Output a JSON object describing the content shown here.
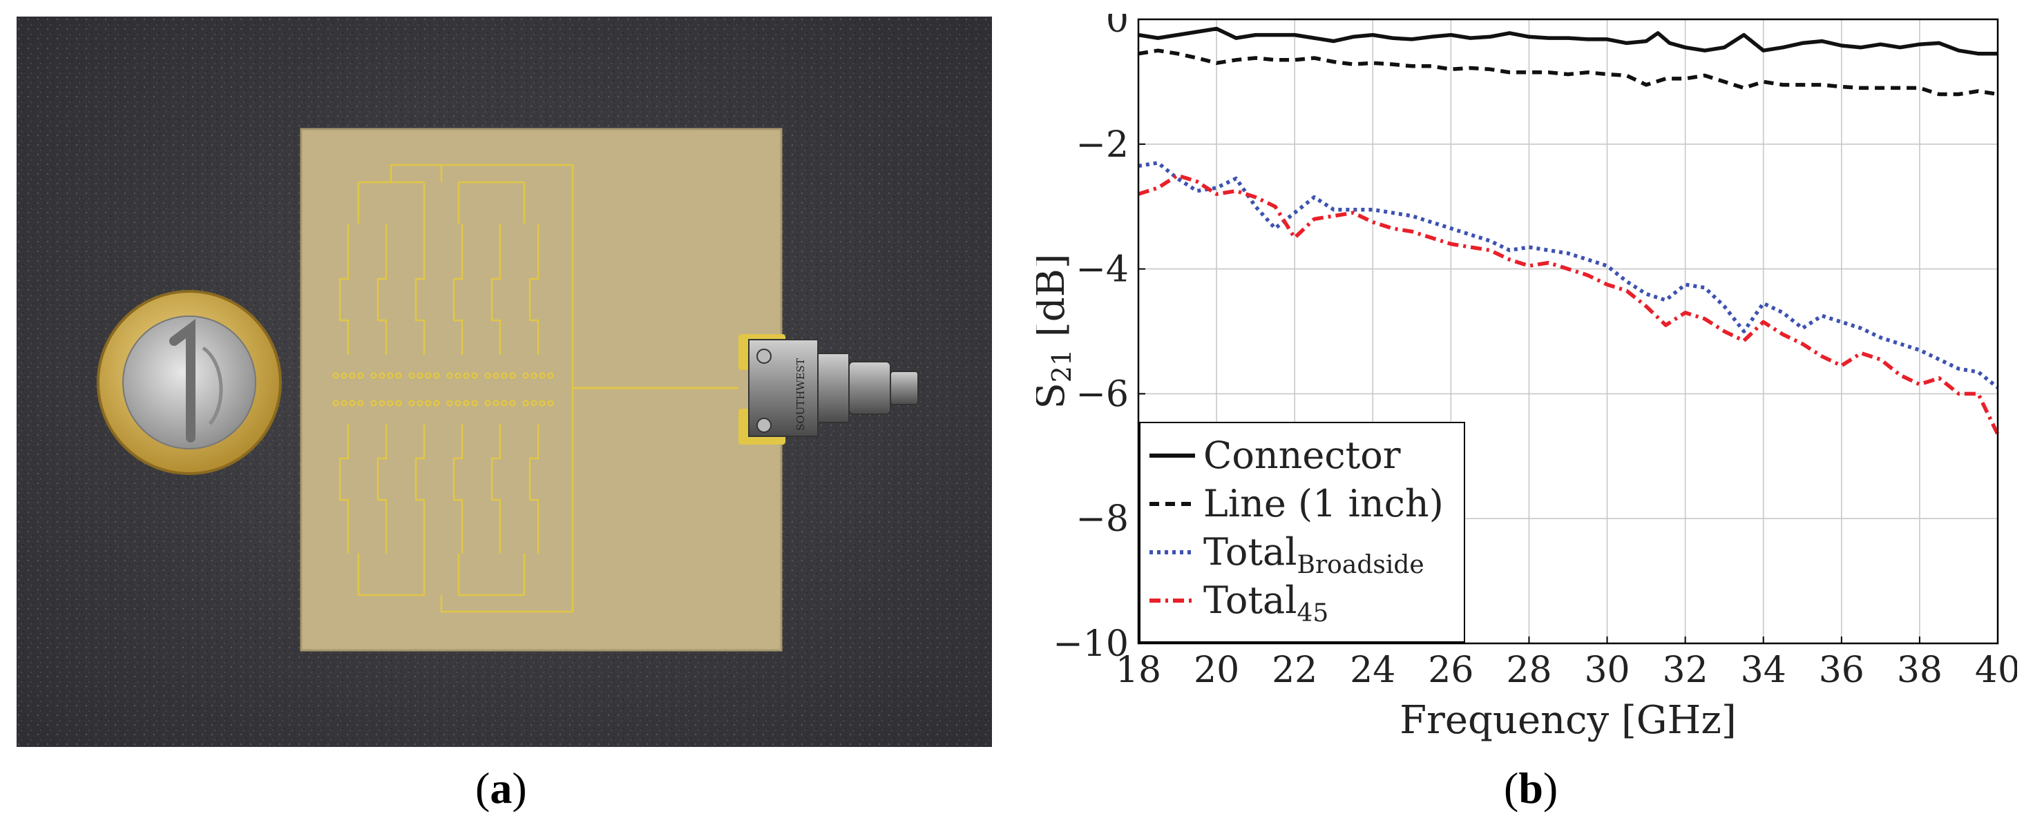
{
  "panels": {
    "a": {
      "open": "(",
      "letter": "a",
      "close": ")"
    },
    "b": {
      "open": "(",
      "letter": "b",
      "close": ")"
    }
  },
  "photo": {
    "connector_marking": "SOUTHWEST"
  },
  "chart_data": {
    "type": "line",
    "title": "",
    "xlabel": "Frequency [GHz]",
    "ylabel_main": "S",
    "ylabel_sub": "21",
    "ylabel_unit": " [dB]",
    "xlim": [
      18,
      40
    ],
    "ylim": [
      -10,
      0
    ],
    "xticks": [
      18,
      20,
      22,
      24,
      26,
      28,
      30,
      32,
      34,
      36,
      38,
      40
    ],
    "yticks": [
      0,
      -2,
      -4,
      -6,
      -8,
      -10
    ],
    "ytick_labels": [
      "0",
      "−2",
      "−4",
      "−6",
      "−8",
      "−10"
    ],
    "grid": true,
    "legend_position": "bottom-left",
    "series": [
      {
        "name": "Connector",
        "name_main": "Connector",
        "name_sub": "",
        "color": "#111111",
        "style": "solid",
        "x": [
          18,
          18.5,
          19,
          19.5,
          20,
          20.5,
          21,
          21.5,
          22,
          22.5,
          23,
          23.5,
          24,
          24.5,
          25,
          25.5,
          26,
          26.5,
          27,
          27.5,
          28,
          28.5,
          29,
          29.5,
          30,
          30.5,
          31,
          31.3,
          31.6,
          32,
          32.5,
          33,
          33.5,
          34,
          34.5,
          35,
          35.5,
          36,
          36.5,
          37,
          37.5,
          38,
          38.5,
          39,
          39.5,
          40
        ],
        "y": [
          -0.25,
          -0.3,
          -0.25,
          -0.2,
          -0.15,
          -0.3,
          -0.25,
          -0.25,
          -0.25,
          -0.3,
          -0.35,
          -0.28,
          -0.25,
          -0.3,
          -0.32,
          -0.28,
          -0.25,
          -0.3,
          -0.28,
          -0.22,
          -0.28,
          -0.3,
          -0.3,
          -0.32,
          -0.32,
          -0.38,
          -0.35,
          -0.22,
          -0.38,
          -0.45,
          -0.5,
          -0.45,
          -0.25,
          -0.5,
          -0.45,
          -0.38,
          -0.35,
          -0.42,
          -0.45,
          -0.4,
          -0.45,
          -0.4,
          -0.38,
          -0.5,
          -0.55,
          -0.55
        ]
      },
      {
        "name": "Line (1 inch)",
        "name_main": "Line (1 inch)",
        "name_sub": "",
        "color": "#111111",
        "style": "dashed",
        "x": [
          18,
          18.5,
          19,
          19.5,
          20,
          20.5,
          21,
          21.5,
          22,
          22.5,
          23,
          23.5,
          24,
          24.5,
          25,
          25.5,
          26,
          26.5,
          27,
          27.5,
          28,
          28.5,
          29,
          29.5,
          30,
          30.5,
          31,
          31.5,
          32,
          32.5,
          33,
          33.5,
          34,
          34.5,
          35,
          35.5,
          36,
          36.5,
          37,
          37.5,
          38,
          38.5,
          39,
          39.5,
          40
        ],
        "y": [
          -0.55,
          -0.5,
          -0.55,
          -0.62,
          -0.7,
          -0.65,
          -0.62,
          -0.65,
          -0.65,
          -0.62,
          -0.68,
          -0.72,
          -0.7,
          -0.72,
          -0.75,
          -0.75,
          -0.8,
          -0.78,
          -0.8,
          -0.85,
          -0.85,
          -0.85,
          -0.88,
          -0.85,
          -0.88,
          -0.9,
          -1.05,
          -0.95,
          -0.95,
          -0.9,
          -1.0,
          -1.1,
          -1.0,
          -1.05,
          -1.05,
          -1.05,
          -1.08,
          -1.1,
          -1.1,
          -1.1,
          -1.1,
          -1.2,
          -1.2,
          -1.15,
          -1.2
        ]
      },
      {
        "name": "TotalBroadside",
        "name_main": "Total",
        "name_sub": "Broadside",
        "color": "#3c52b0",
        "style": "dotted",
        "x": [
          18,
          18.5,
          19,
          19.5,
          20,
          20.5,
          21,
          21.5,
          22,
          22.5,
          23,
          23.5,
          24,
          24.5,
          25,
          25.5,
          26,
          26.5,
          27,
          27.5,
          28,
          28.5,
          29,
          29.5,
          30,
          30.5,
          31,
          31.5,
          32,
          32.5,
          33,
          33.5,
          34,
          34.5,
          35,
          35.5,
          36,
          36.5,
          37,
          37.5,
          38,
          38.5,
          39,
          39.5,
          40
        ],
        "y": [
          -2.35,
          -2.3,
          -2.55,
          -2.75,
          -2.7,
          -2.55,
          -3.0,
          -3.35,
          -3.1,
          -2.85,
          -3.05,
          -3.05,
          -3.05,
          -3.1,
          -3.15,
          -3.25,
          -3.35,
          -3.45,
          -3.55,
          -3.7,
          -3.65,
          -3.7,
          -3.75,
          -3.85,
          -3.95,
          -4.2,
          -4.4,
          -4.5,
          -4.25,
          -4.3,
          -4.6,
          -5.0,
          -4.55,
          -4.7,
          -4.95,
          -4.75,
          -4.85,
          -4.95,
          -5.1,
          -5.2,
          -5.3,
          -5.45,
          -5.6,
          -5.65,
          -5.9
        ]
      },
      {
        "name": "Total45",
        "name_main": "Total",
        "name_sub": "45",
        "color": "#e8202a",
        "style": "dashdot",
        "x": [
          18,
          18.5,
          19,
          19.5,
          20,
          20.5,
          21,
          21.5,
          22,
          22.5,
          23,
          23.5,
          24,
          24.5,
          25,
          25.5,
          26,
          26.5,
          27,
          27.5,
          28,
          28.5,
          29,
          29.5,
          30,
          30.5,
          31,
          31.5,
          32,
          32.5,
          33,
          33.5,
          34,
          34.5,
          35,
          35.5,
          36,
          36.5,
          37,
          37.5,
          38,
          38.5,
          39,
          39.5,
          40
        ],
        "y": [
          -2.8,
          -2.7,
          -2.5,
          -2.6,
          -2.8,
          -2.75,
          -2.85,
          -3.0,
          -3.5,
          -3.2,
          -3.15,
          -3.1,
          -3.25,
          -3.35,
          -3.4,
          -3.5,
          -3.6,
          -3.65,
          -3.7,
          -3.85,
          -3.95,
          -3.9,
          -4.0,
          -4.1,
          -4.25,
          -4.35,
          -4.6,
          -4.9,
          -4.7,
          -4.8,
          -5.0,
          -5.15,
          -4.85,
          -5.05,
          -5.2,
          -5.4,
          -5.55,
          -5.35,
          -5.45,
          -5.7,
          -5.85,
          -5.75,
          -6.0,
          -6.0,
          -6.65
        ]
      }
    ]
  }
}
